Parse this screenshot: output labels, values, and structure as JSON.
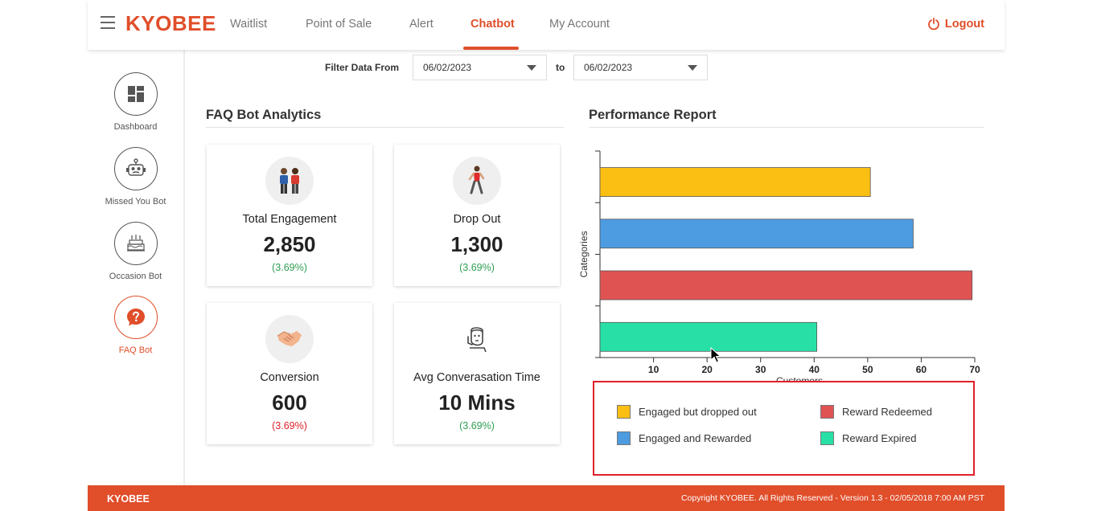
{
  "brand": "KYOBEE",
  "nav": {
    "items": [
      {
        "label": "Waitlist"
      },
      {
        "label": "Point of Sale"
      },
      {
        "label": "Alert"
      },
      {
        "label": "Chatbot"
      },
      {
        "label": "My Account"
      }
    ],
    "active": "Chatbot",
    "logout_label": "Logout"
  },
  "sidebar": {
    "items": [
      {
        "label": "Dashboard",
        "icon": "dashboard-icon"
      },
      {
        "label": "Missed You Bot",
        "icon": "robot-icon"
      },
      {
        "label": "Occasion Bot",
        "icon": "cake-icon"
      },
      {
        "label": "FAQ Bot",
        "icon": "question-icon"
      }
    ],
    "active": "FAQ Bot"
  },
  "filter": {
    "label": "Filter Data From",
    "from_value": "06/02/2023",
    "to_label": "to",
    "to_value": "06/02/2023"
  },
  "analytics": {
    "title": "FAQ Bot Analytics",
    "cards": [
      {
        "label": "Total Engagement",
        "value": "2,850",
        "pct": "(3.69%)",
        "trend": "green",
        "icon": "people-icon"
      },
      {
        "label": "Drop Out",
        "value": "1,300",
        "pct": "(3.69%)",
        "trend": "green",
        "icon": "walking-person-icon"
      },
      {
        "label": "Conversion",
        "value": "600",
        "pct": "(3.69%)",
        "trend": "red",
        "icon": "handshake-icon"
      },
      {
        "label": "Avg Converasation Time",
        "value": "10 Mins",
        "pct": "(3.69%)",
        "trend": "green",
        "icon": "thinking-person-icon"
      }
    ]
  },
  "performance": {
    "title": "Performance Report"
  },
  "chart_data": {
    "type": "bar",
    "orientation": "horizontal",
    "title": "Performance Report",
    "xlabel": "Customers",
    "ylabel": "Categories",
    "xlim": [
      0,
      70
    ],
    "xticks": [
      10,
      20,
      30,
      40,
      50,
      60,
      70
    ],
    "categories": [
      "Engaged but dropped out",
      "Engaged and Rewarded",
      "Reward Redeemed",
      "Reward Expired"
    ],
    "values": [
      50.5,
      58.5,
      69.5,
      40.5
    ],
    "colors": [
      "#fbbf14",
      "#4d9be0",
      "#e05353",
      "#28e0a6"
    ],
    "legend": [
      {
        "label": "Engaged but dropped out",
        "color": "#fbbf14"
      },
      {
        "label": "Reward Redeemed",
        "color": "#e05353"
      },
      {
        "label": "Engaged and Rewarded",
        "color": "#4d9be0"
      },
      {
        "label": "Reward Expired",
        "color": "#28e0a6"
      }
    ]
  },
  "footer": {
    "brand": "KYOBEE",
    "copyright": "Copyright KYOBEE. All Rights Reserved - Version 1.3 - 02/05/2018 7:00 AM PST"
  },
  "colors": {
    "accent": "#e04e2a",
    "alert": "#e0202a",
    "positive": "#2e9e52"
  }
}
